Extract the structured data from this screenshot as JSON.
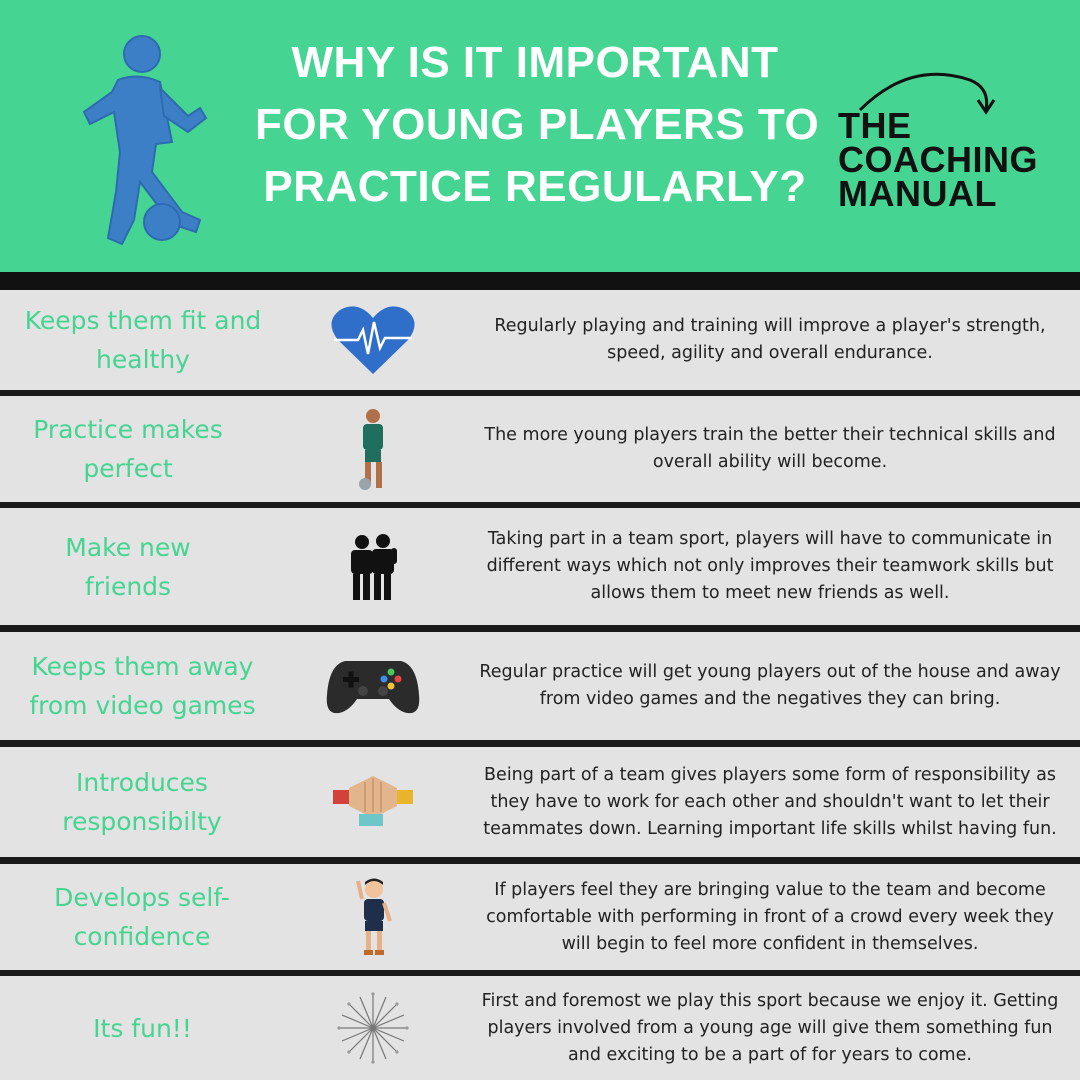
{
  "header": {
    "title_lines": [
      "WHY IS IT IMPORTANT",
      "FOR YOUNG PLAYERS TO",
      "PRACTICE REGULARLY?"
    ],
    "logo_lines": [
      "THE",
      "COACHING",
      "MANUAL"
    ],
    "illustration": "footballer-silhouette-icon"
  },
  "colors": {
    "accent_green": "#45d492",
    "row_background": "#e3e3e3",
    "separator": "#111111",
    "icon_blue": "#2f6fc9"
  },
  "rows": [
    {
      "label": "Keeps them fit and healthy",
      "icon": "heartbeat-icon",
      "description": "Regularly playing and training will improve a player's strength, speed, agility and overall endurance."
    },
    {
      "label": "Practice makes perfect",
      "icon": "footballer-icon",
      "description": "The more young players train the better their technical skills and overall ability will become."
    },
    {
      "label": "Make new friends",
      "icon": "friends-icon",
      "description": "Taking part in a team sport, players will have to communicate in different ways which not only improves their teamwork skills but allows them to meet new friends as well."
    },
    {
      "label": "Keeps them away from video games",
      "icon": "gamepad-icon",
      "description": "Regular practice will get young players out of the house and away from video games and the negatives they can bring."
    },
    {
      "label": "Introduces responsibilty",
      "icon": "team-hands-icon",
      "description": "Being part of a team gives players some form of responsibility as they have to work for each other and shouldn't want to let their teammates down. Learning important life skills whilst having fun."
    },
    {
      "label": "Develops self-confidence",
      "icon": "waving-boy-icon",
      "description": "If players feel they are bringing value to the team and become comfortable with performing in front of a crowd every week they will begin to feel more confident in themselves."
    },
    {
      "label": "Its fun!!",
      "icon": "firework-icon",
      "description": "First and foremost we play this sport because we enjoy it. Getting players involved from a young age will give them something fun and exciting to be a part of for years to come."
    }
  ]
}
